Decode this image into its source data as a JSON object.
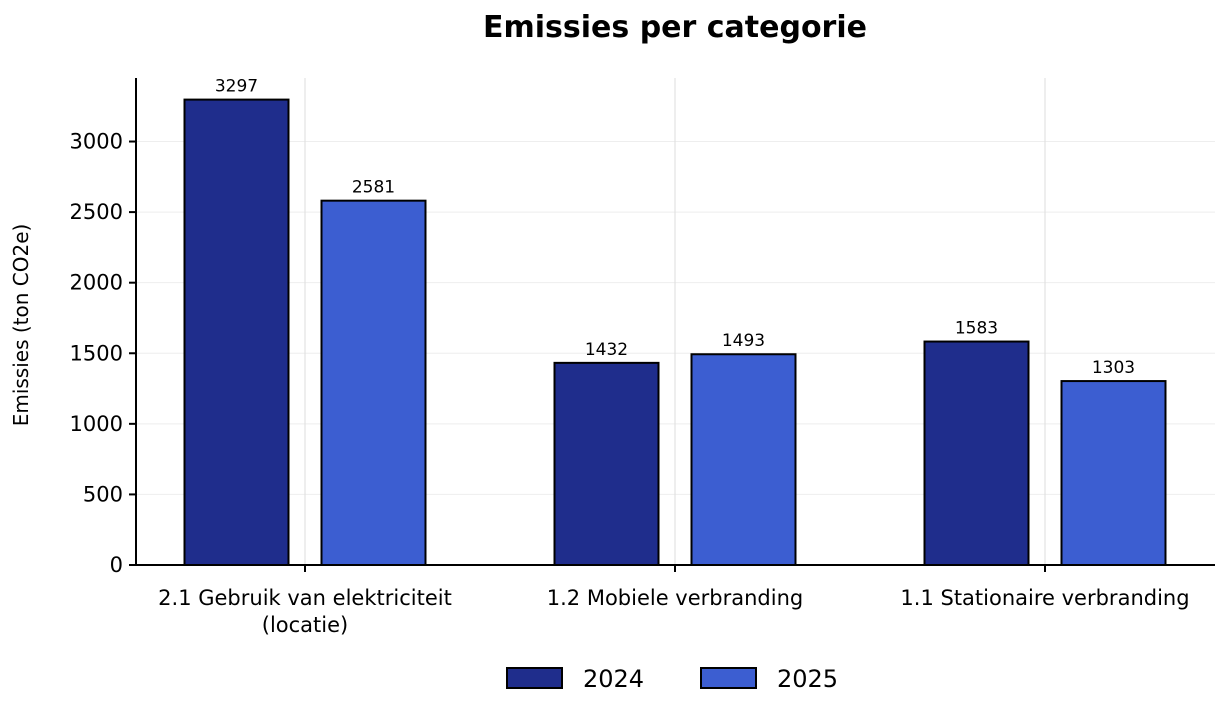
{
  "chart_data": {
    "type": "bar",
    "title": "Emissies per categorie",
    "xlabel": "",
    "ylabel": "Emissies (ton CO2e)",
    "ylim": [
      0,
      3450
    ],
    "yticks": [
      0,
      500,
      1000,
      1500,
      2000,
      2500,
      3000
    ],
    "categories": [
      [
        "2.1 Gebruik van elektriciteit",
        "(locatie)"
      ],
      [
        "1.2 Mobiele verbranding"
      ],
      [
        "1.1 Stationaire verbranding"
      ]
    ],
    "series": [
      {
        "name": "2024",
        "color": "#1f2d8c",
        "values": [
          3297,
          1432,
          1583
        ]
      },
      {
        "name": "2025",
        "color": "#3c5ed1",
        "values": [
          2581,
          1493,
          1303
        ]
      }
    ],
    "grid": "vertical",
    "legend": "bottom-center"
  }
}
